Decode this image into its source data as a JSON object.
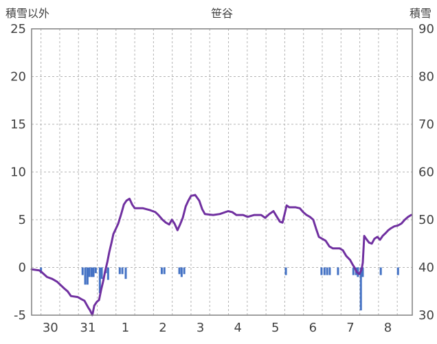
{
  "chart_data": {
    "type": "line+bar",
    "title": "笹谷",
    "left_axis": {
      "label": "積雪以外",
      "min": -5,
      "max": 25,
      "ticks": [
        25,
        20,
        15,
        10,
        5,
        0,
        -5
      ]
    },
    "right_axis": {
      "label": "積雪",
      "min": 30,
      "max": 90,
      "ticks": [
        90,
        80,
        70,
        60,
        50,
        40,
        30
      ]
    },
    "x_axis": {
      "labels": [
        "30",
        "31",
        "1",
        "2",
        "3",
        "4",
        "5",
        "6",
        "7",
        "8"
      ],
      "label_positions": [
        0.5,
        1.5,
        2.5,
        3.5,
        4.5,
        5.5,
        6.5,
        7.5,
        8.5,
        9.5
      ],
      "range": [
        0,
        10.15
      ],
      "gridline_start": 0.25,
      "gridline_step": 0.5
    },
    "colors": {
      "line": "#7030A0",
      "bars": "#4472C4",
      "grid": "#b3b3b3",
      "border": "#7f7f7f",
      "text": "#404040"
    },
    "series": [
      {
        "name": "line",
        "type": "line",
        "axis": "left",
        "points": [
          [
            0,
            -0.2
          ],
          [
            0.2,
            -0.3
          ],
          [
            0.27,
            -0.5
          ],
          [
            0.41,
            -1.0
          ],
          [
            0.55,
            -1.2
          ],
          [
            0.68,
            -1.5
          ],
          [
            0.87,
            -2.2
          ],
          [
            0.96,
            -2.5
          ],
          [
            1.05,
            -3.0
          ],
          [
            1.23,
            -3.1
          ],
          [
            1.32,
            -3.3
          ],
          [
            1.41,
            -3.5
          ],
          [
            1.51,
            -4.2
          ],
          [
            1.56,
            -4.5
          ],
          [
            1.62,
            -5.0
          ],
          [
            1.67,
            -4.0
          ],
          [
            1.74,
            -3.6
          ],
          [
            1.8,
            -3.4
          ],
          [
            1.85,
            -2.4
          ],
          [
            1.91,
            -1.4
          ],
          [
            1.96,
            -0.4
          ],
          [
            2.02,
            0.6
          ],
          [
            2.07,
            1.6
          ],
          [
            2.13,
            2.6
          ],
          [
            2.18,
            3.5
          ],
          [
            2.24,
            4.0
          ],
          [
            2.31,
            4.6
          ],
          [
            2.39,
            5.6
          ],
          [
            2.46,
            6.6
          ],
          [
            2.53,
            7.0
          ],
          [
            2.61,
            7.2
          ],
          [
            2.68,
            6.6
          ],
          [
            2.75,
            6.2
          ],
          [
            2.97,
            6.2
          ],
          [
            3.16,
            6.0
          ],
          [
            3.3,
            5.8
          ],
          [
            3.38,
            5.5
          ],
          [
            3.49,
            5.0
          ],
          [
            3.58,
            4.7
          ],
          [
            3.67,
            4.5
          ],
          [
            3.74,
            5.0
          ],
          [
            3.81,
            4.6
          ],
          [
            3.89,
            3.9
          ],
          [
            3.96,
            4.5
          ],
          [
            4.03,
            5.2
          ],
          [
            4.11,
            6.4
          ],
          [
            4.18,
            7.0
          ],
          [
            4.25,
            7.5
          ],
          [
            4.36,
            7.6
          ],
          [
            4.47,
            7.0
          ],
          [
            4.55,
            6.1
          ],
          [
            4.62,
            5.6
          ],
          [
            4.84,
            5.5
          ],
          [
            5.02,
            5.6
          ],
          [
            5.24,
            5.9
          ],
          [
            5.35,
            5.8
          ],
          [
            5.46,
            5.5
          ],
          [
            5.64,
            5.5
          ],
          [
            5.76,
            5.3
          ],
          [
            5.94,
            5.5
          ],
          [
            6.12,
            5.5
          ],
          [
            6.23,
            5.2
          ],
          [
            6.34,
            5.6
          ],
          [
            6.45,
            5.9
          ],
          [
            6.54,
            5.3
          ],
          [
            6.62,
            4.8
          ],
          [
            6.69,
            4.7
          ],
          [
            6.74,
            5.5
          ],
          [
            6.8,
            6.5
          ],
          [
            6.87,
            6.3
          ],
          [
            7.04,
            6.3
          ],
          [
            7.15,
            6.2
          ],
          [
            7.24,
            5.8
          ],
          [
            7.33,
            5.5
          ],
          [
            7.42,
            5.3
          ],
          [
            7.51,
            5.0
          ],
          [
            7.59,
            4.0
          ],
          [
            7.66,
            3.2
          ],
          [
            7.75,
            3.0
          ],
          [
            7.84,
            2.8
          ],
          [
            7.94,
            2.2
          ],
          [
            8.03,
            2.0
          ],
          [
            8.21,
            2.0
          ],
          [
            8.3,
            1.8
          ],
          [
            8.39,
            1.2
          ],
          [
            8.49,
            0.8
          ],
          [
            8.56,
            0.3
          ],
          [
            8.61,
            0.0
          ],
          [
            8.67,
            -0.5
          ],
          [
            8.74,
            -0.7
          ],
          [
            8.8,
            -0.2
          ],
          [
            8.83,
            0.5
          ],
          [
            8.87,
            3.3
          ],
          [
            8.92,
            3.0
          ],
          [
            9.0,
            2.6
          ],
          [
            9.07,
            2.5
          ],
          [
            9.14,
            3.0
          ],
          [
            9.22,
            3.2
          ],
          [
            9.29,
            2.9
          ],
          [
            9.36,
            3.3
          ],
          [
            9.44,
            3.6
          ],
          [
            9.51,
            3.9
          ],
          [
            9.58,
            4.1
          ],
          [
            9.67,
            4.3
          ],
          [
            9.77,
            4.4
          ],
          [
            9.86,
            4.6
          ],
          [
            9.95,
            5.0
          ],
          [
            10.04,
            5.3
          ],
          [
            10.12,
            5.5
          ]
        ]
      },
      {
        "name": "bars",
        "type": "bar",
        "axis": "left",
        "bar_width_days": 0.055,
        "points": [
          [
            0.25,
            -0.6
          ],
          [
            1.36,
            -0.8
          ],
          [
            1.43,
            -1.8
          ],
          [
            1.49,
            -1.8
          ],
          [
            1.54,
            -1.0
          ],
          [
            1.6,
            -1.0
          ],
          [
            1.65,
            -1.0
          ],
          [
            1.71,
            -0.6
          ],
          [
            1.82,
            -2.7
          ],
          [
            1.87,
            -1.2
          ],
          [
            1.98,
            -0.6
          ],
          [
            2.04,
            -1.3
          ],
          [
            2.35,
            -0.7
          ],
          [
            2.42,
            -0.7
          ],
          [
            2.51,
            -1.2
          ],
          [
            3.47,
            -0.7
          ],
          [
            3.54,
            -0.7
          ],
          [
            3.94,
            -0.7
          ],
          [
            4.0,
            -1.0
          ],
          [
            4.07,
            -0.7
          ],
          [
            6.78,
            -0.8
          ],
          [
            7.73,
            -0.8
          ],
          [
            7.81,
            -0.8
          ],
          [
            7.88,
            -0.8
          ],
          [
            7.95,
            -0.8
          ],
          [
            8.17,
            -0.8
          ],
          [
            8.58,
            -0.8
          ],
          [
            8.65,
            -0.8
          ],
          [
            8.7,
            -1.0
          ],
          [
            8.78,
            -4.5
          ],
          [
            8.83,
            -1.0
          ],
          [
            9.31,
            -0.8
          ],
          [
            9.77,
            -0.8
          ]
        ]
      }
    ]
  }
}
